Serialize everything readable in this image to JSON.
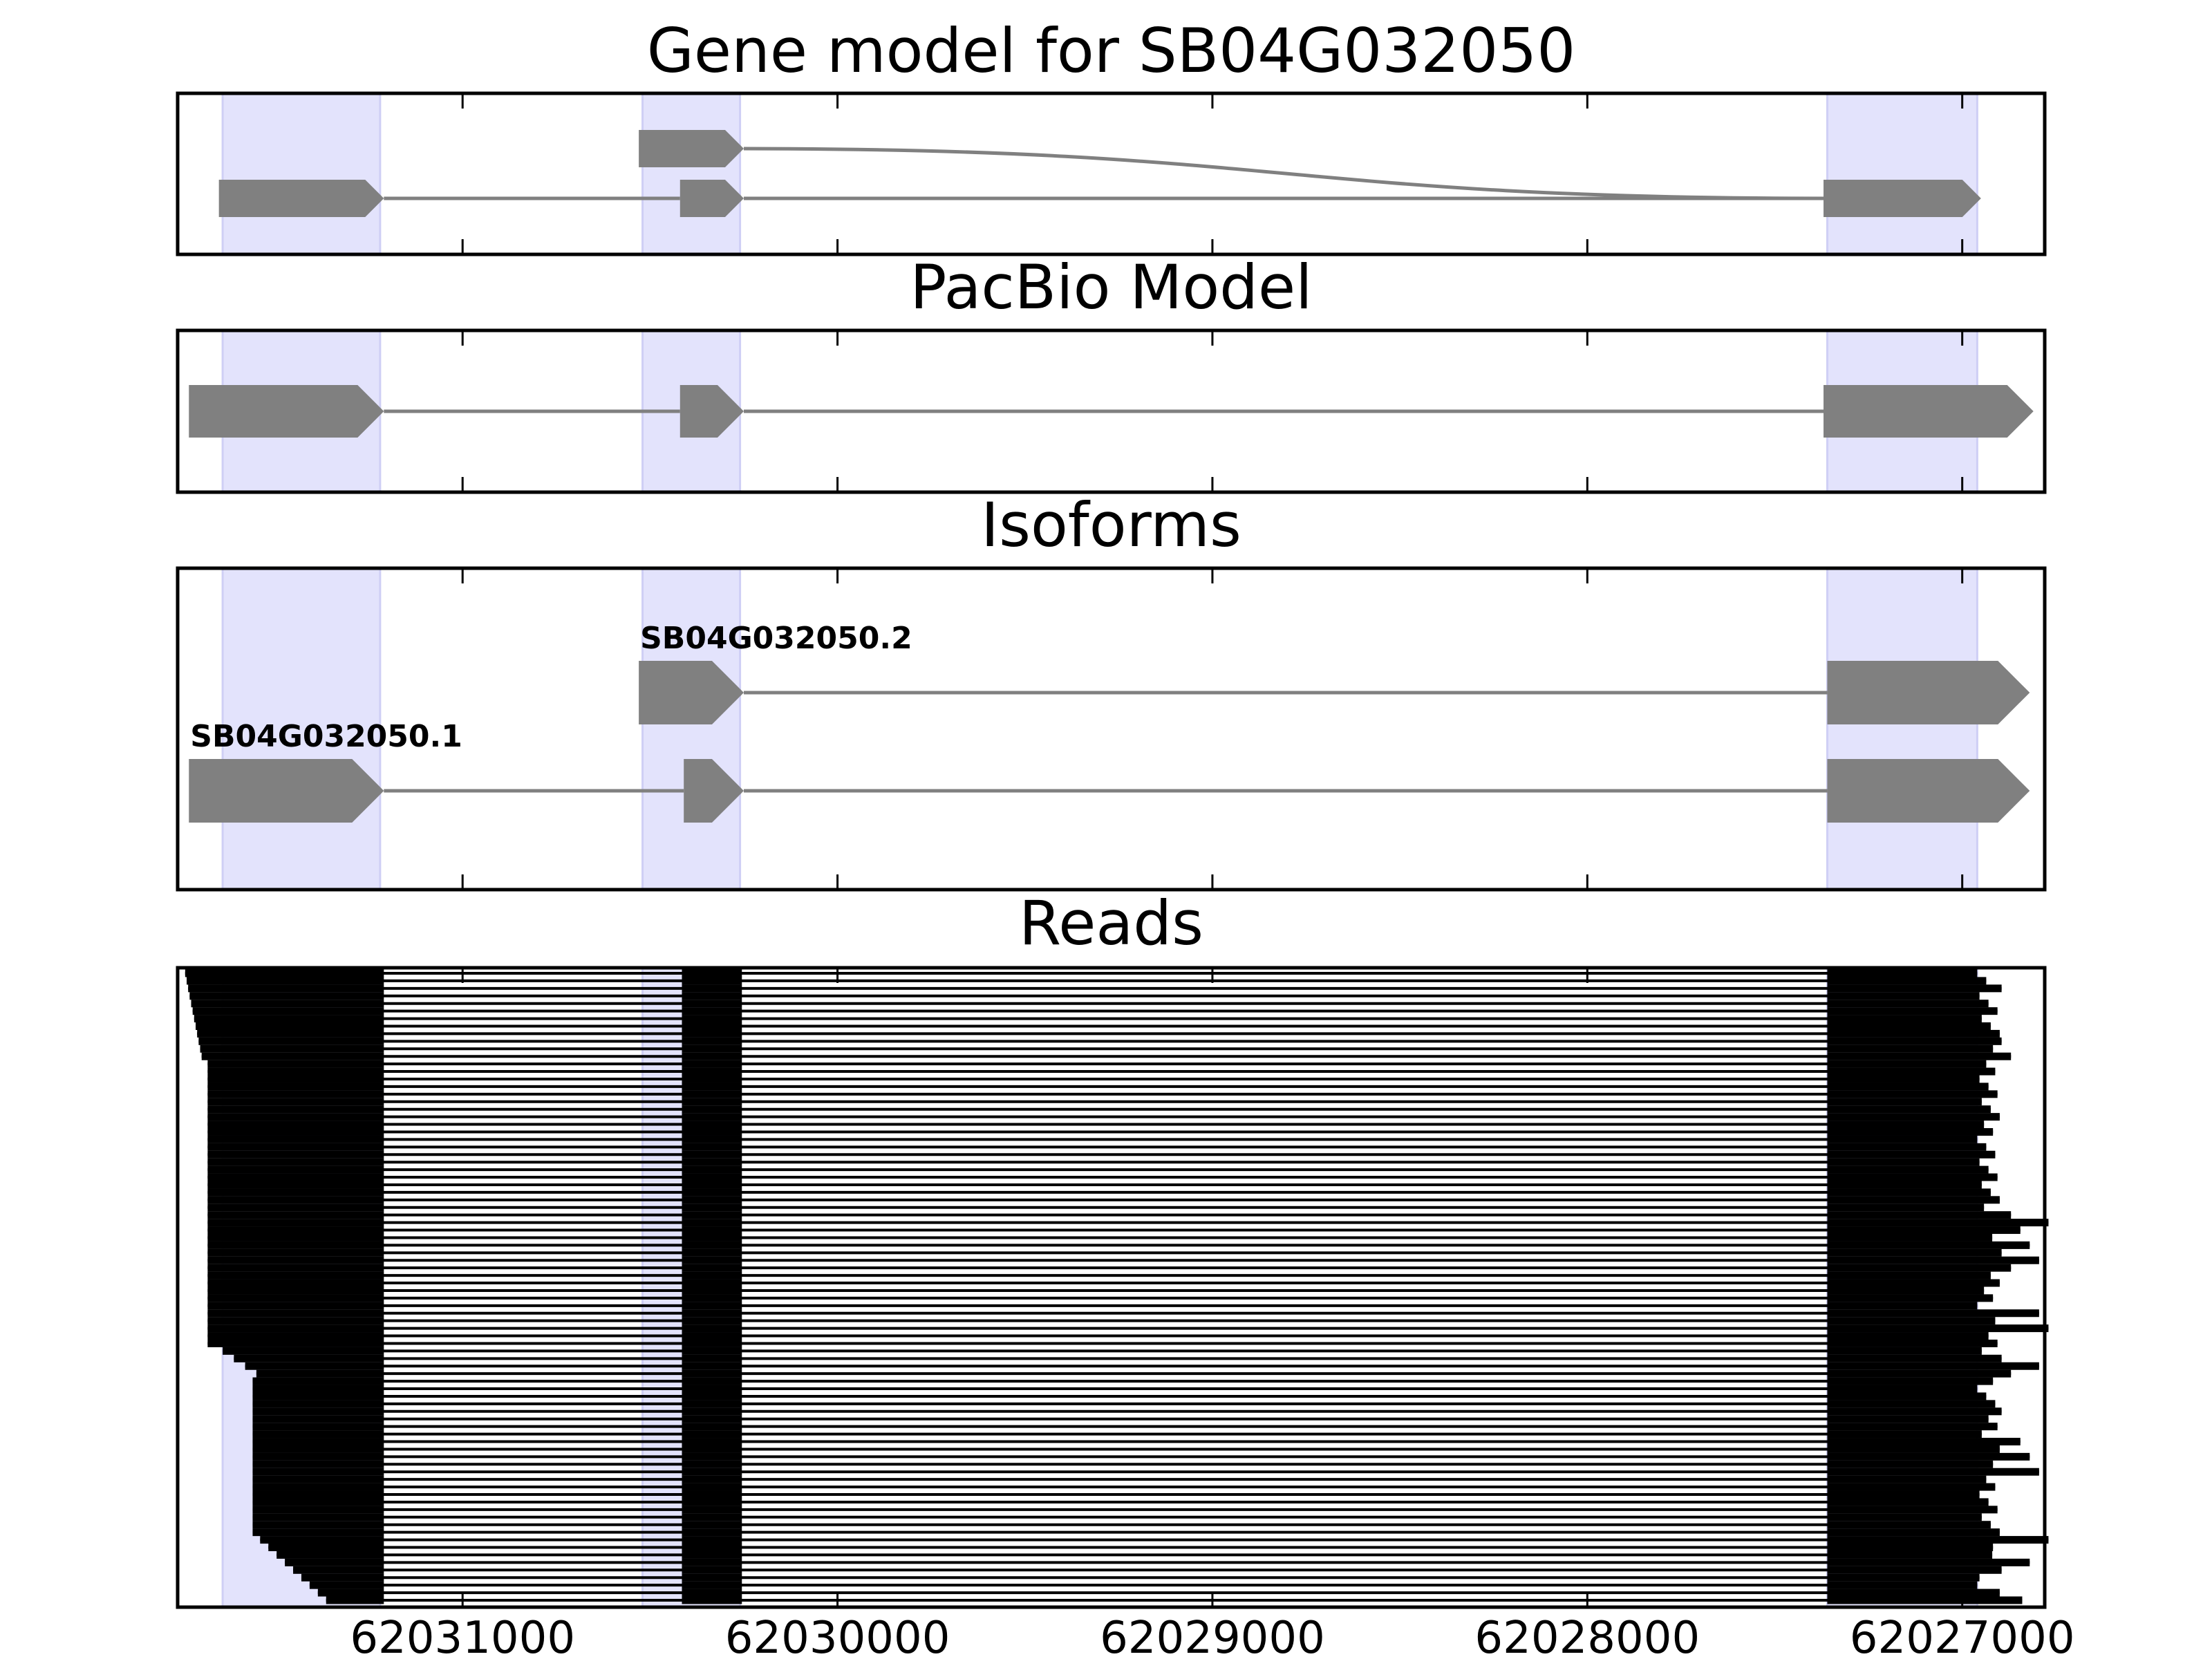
{
  "chart_data": {
    "type": "gene-model",
    "x_axis": {
      "reversed": true,
      "ticks": [
        62031000,
        62030000,
        62029000,
        62028000,
        62027000
      ],
      "tick_labels": [
        "62031000",
        "62030000",
        "62029000",
        "62028000",
        "62027000"
      ],
      "range": [
        62031760,
        62026780
      ]
    },
    "highlight_color": "#e3e3fc",
    "feature_color": "#808080",
    "highlight_regions": [
      [
        62031640,
        62031220
      ],
      [
        62030520,
        62030260
      ],
      [
        62027360,
        62026960
      ]
    ],
    "panels": [
      {
        "title": "Gene model for SB04G032050",
        "tracks": [
          {
            "exons": [
              [
                62030530,
                62030250
              ]
            ],
            "connect_to": 62027360,
            "curved": true
          },
          {
            "exons": [
              [
                62031650,
                62031210
              ],
              [
                62030420,
                62030250
              ],
              [
                62027370,
                62026950
              ]
            ],
            "connect_to": null,
            "curved": false
          }
        ]
      },
      {
        "title": "PacBio Model",
        "tracks": [
          {
            "exons": [
              [
                62031730,
                62031210
              ],
              [
                62030420,
                62030250
              ],
              [
                62027370,
                62026810
              ]
            ],
            "connect_to": null,
            "curved": false
          }
        ]
      },
      {
        "title": "Isoforms",
        "tracks": [
          {
            "label": "SB04G032050.2",
            "exons": [
              [
                62030530,
                62030250
              ],
              [
                62027360,
                62026820
              ]
            ]
          },
          {
            "label": "SB04G032050.1",
            "exons": [
              [
                62031730,
                62031210
              ],
              [
                62030410,
                62030250
              ],
              [
                62027360,
                62026820
              ]
            ]
          }
        ]
      },
      {
        "title": "Reads",
        "read_count": 84,
        "intron_gap": [
          62031210,
          62030415,
          62030255,
          62027360
        ]
      }
    ]
  }
}
